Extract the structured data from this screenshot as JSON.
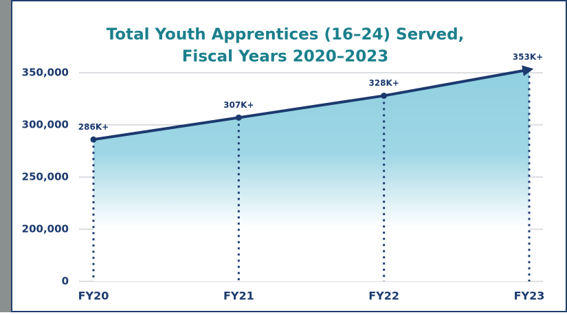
{
  "chart_data": {
    "type": "area",
    "title": [
      "Total Youth Apprentices (16–24) Served,",
      "Fiscal Years 2020–2023"
    ],
    "categories": [
      "FY20",
      "FY21",
      "FY22",
      "FY23"
    ],
    "values": [
      286000,
      307000,
      328000,
      353000
    ],
    "value_labels": [
      "286K+",
      "307K+",
      "328K+",
      "353K+"
    ],
    "color": "#1c3a6e",
    "fill_color": "#8fd0e0",
    "ylim": [
      0,
      360000
    ],
    "yticks": [
      0,
      {
        "value": 200000,
        "label": "200,000"
      },
      {
        "value": 250000,
        "label": "250,000"
      },
      {
        "value": 300000,
        "label": "300,000"
      },
      {
        "value": 350000,
        "label": "350,000"
      }
    ],
    "axis_break": true,
    "grid": true
  }
}
